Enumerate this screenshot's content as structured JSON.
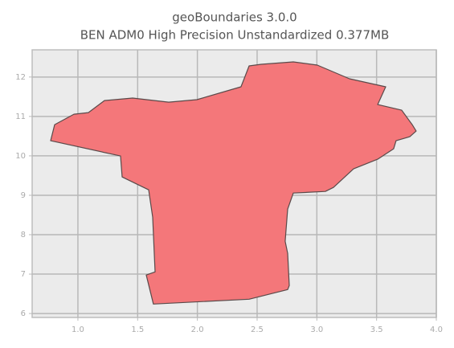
{
  "chart_data": {
    "type": "polygon",
    "title": "geoBoundaries 3.0.0",
    "subtitle": "BEN ADM0 High Precision Unstandardized 0.377MB",
    "x": [
      1.632,
      1.572,
      1.646,
      1.626,
      1.592,
      1.37,
      1.357,
      0.772,
      0.805,
      0.967,
      1.088,
      1.222,
      1.458,
      1.76,
      1.996,
      2.365,
      2.399,
      2.433,
      2.534,
      2.803,
      3.004,
      3.273,
      3.576,
      3.509,
      3.71,
      3.798,
      3.831,
      3.778,
      3.663,
      3.643,
      3.509,
      3.307,
      3.139,
      3.071,
      2.803,
      2.756,
      2.735,
      2.756,
      2.769,
      2.756,
      2.433
    ],
    "y": [
      6.241,
      6.976,
      7.057,
      8.445,
      9.139,
      9.465,
      9.996,
      10.384,
      10.792,
      11.057,
      11.098,
      11.404,
      11.466,
      11.363,
      11.425,
      11.752,
      12.017,
      12.282,
      12.323,
      12.384,
      12.302,
      11.955,
      11.752,
      11.302,
      11.159,
      10.792,
      10.629,
      10.486,
      10.384,
      10.18,
      9.914,
      9.67,
      9.2,
      9.098,
      9.057,
      8.649,
      7.833,
      7.527,
      6.71,
      6.608,
      6.363
    ],
    "color": "#f4777a",
    "edge_color": "#5a4a4a",
    "xlim": [
      0.617,
      4.0
    ],
    "ylim": [
      5.9,
      12.69
    ],
    "xticks": [
      {
        "value": 1,
        "label": "1.0"
      },
      {
        "value": 1.5,
        "label": "1.5"
      },
      {
        "value": 2,
        "label": "2.0"
      },
      {
        "value": 2.5,
        "label": "2.5"
      },
      {
        "value": 3,
        "label": "3.0"
      },
      {
        "value": 3.5,
        "label": "3.5"
      },
      {
        "value": 4,
        "label": "4.0"
      }
    ],
    "yticks": [
      6,
      7,
      8,
      9,
      10,
      11,
      12
    ],
    "grid": true
  }
}
